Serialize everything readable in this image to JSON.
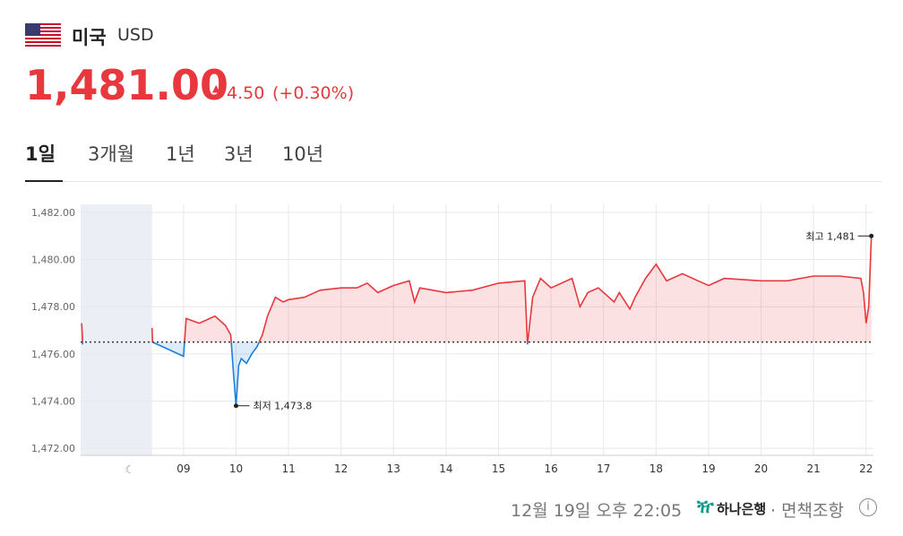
{
  "header": {
    "country": "미국",
    "currency": "USD",
    "price": "1,481.00",
    "change": "4.50",
    "change_pct": "(+0.30%)"
  },
  "tabs": [
    "1일",
    "3개월",
    "1년",
    "3년",
    "10년"
  ],
  "chart_data": {
    "type": "line",
    "baseline": 1476.5,
    "night_range": [
      7.04,
      8.4
    ],
    "x": [
      7.06,
      7.08,
      7.5,
      8.4,
      8.41,
      9.0,
      9.05,
      9.3,
      9.6,
      9.8,
      9.9,
      9.95,
      10.0,
      10.05,
      10.1,
      10.2,
      10.3,
      10.4,
      10.5,
      10.6,
      10.75,
      10.9,
      11.0,
      11.3,
      11.6,
      12.0,
      12.3,
      12.5,
      12.7,
      13.0,
      13.3,
      13.4,
      13.5,
      14.0,
      14.5,
      15.0,
      15.5,
      15.55,
      15.65,
      15.8,
      16.0,
      16.4,
      16.55,
      16.7,
      16.9,
      17.2,
      17.3,
      17.5,
      17.6,
      17.8,
      18.0,
      18.2,
      18.5,
      18.8,
      19.0,
      19.3,
      20.0,
      20.5,
      21.0,
      21.5,
      21.9,
      21.95,
      22.0,
      22.05,
      22.1
    ],
    "series": [
      {
        "color": "#e8373d",
        "below_color": "#1a7fe0",
        "values": [
          1477.3,
          1476.4,
          null,
          1477.1,
          1476.5,
          1475.9,
          1477.5,
          1477.3,
          1477.6,
          1477.2,
          1476.8,
          1475.2,
          1473.8,
          1475.5,
          1475.8,
          1475.6,
          1476.0,
          1476.3,
          1476.8,
          1477.6,
          1478.4,
          1478.2,
          1478.3,
          1478.4,
          1478.7,
          1478.8,
          1478.8,
          1479.0,
          1478.6,
          1478.9,
          1479.1,
          1478.2,
          1478.8,
          1478.6,
          1478.7,
          1479.0,
          1479.1,
          1476.4,
          1478.4,
          1479.2,
          1478.8,
          1479.2,
          1478.0,
          1478.6,
          1478.8,
          1478.2,
          1478.6,
          1477.9,
          1478.4,
          1479.2,
          1479.8,
          1479.1,
          1479.4,
          1479.1,
          1478.9,
          1479.2,
          1479.1,
          1479.1,
          1479.3,
          1479.3,
          1479.2,
          1478.6,
          1477.3,
          1478.0,
          1481.0
        ]
      }
    ],
    "xlim": [
      7.04,
      22.14
    ],
    "xticks": [
      {
        "value": 9,
        "label": "09"
      },
      10,
      11,
      12,
      13,
      14,
      15,
      16,
      17,
      18,
      19,
      20,
      21,
      22
    ],
    "ylim": [
      1471.7,
      1482.34
    ],
    "yticks": [
      {
        "value": 1472,
        "label": "1,472.00"
      },
      {
        "value": 1474,
        "label": "1,474.00"
      },
      {
        "value": 1476,
        "label": "1,476.00"
      },
      {
        "value": 1478,
        "label": "1,478.00"
      },
      {
        "value": 1480,
        "label": "1,480.00"
      },
      {
        "value": 1482,
        "label": "1,482.00"
      }
    ],
    "grid": true,
    "annotations": [
      {
        "label": "최고 1,481",
        "x": 22.1,
        "y": 1481.0
      },
      {
        "label": "최저 1,473.8",
        "x": 10.0,
        "y": 1473.8
      }
    ]
  },
  "footer": {
    "timestamp": "12월 19일 오후 22:05",
    "bank": "하나은행",
    "disclaimer": "· 면책조항"
  }
}
